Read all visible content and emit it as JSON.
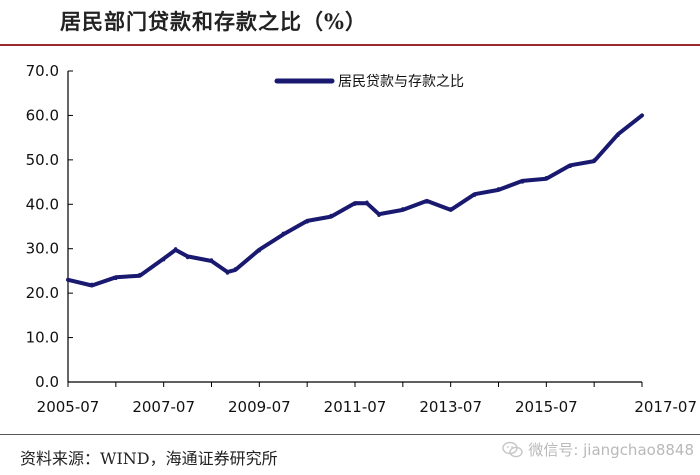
{
  "header": {
    "title": "居民部门贷款和存款之比（%）"
  },
  "footer": {
    "source": "资料来源：WIND，海通证券研究所",
    "watermark": "微信号: jiangchao8848",
    "watermark_icon": "wechat-icon"
  },
  "colors": {
    "series": "#191970",
    "rule": "#9b2b2b"
  },
  "chart_data": {
    "type": "line",
    "title": "居民部门贷款和存款之比（%）",
    "xlabel": "",
    "ylabel": "",
    "ylim": [
      0,
      70
    ],
    "xlim": [
      "2005-07",
      "2017-07"
    ],
    "y_ticks": [
      "0.0",
      "10.0",
      "20.0",
      "30.0",
      "40.0",
      "50.0",
      "60.0",
      "70.0"
    ],
    "x_ticks": [
      "2005-07",
      "2007-07",
      "2009-07",
      "2011-07",
      "2013-07",
      "2015-07",
      "2017-07"
    ],
    "grid": false,
    "legend_position": "top",
    "series": [
      {
        "name": "居民贷款与存款之比",
        "x": [
          "2005-07",
          "2006-01",
          "2006-07",
          "2007-01",
          "2007-07",
          "2007-10",
          "2008-01",
          "2008-07",
          "2008-11",
          "2009-01",
          "2009-07",
          "2010-01",
          "2010-07",
          "2011-01",
          "2011-07",
          "2011-10",
          "2012-01",
          "2012-07",
          "2013-01",
          "2013-07",
          "2014-01",
          "2014-07",
          "2015-01",
          "2015-07",
          "2016-01",
          "2016-07",
          "2017-01",
          "2017-07"
        ],
        "values": [
          23.0,
          22.0,
          23.3,
          24.2,
          27.5,
          30.0,
          28.0,
          27.5,
          24.5,
          25.5,
          29.5,
          33.5,
          36.0,
          37.5,
          40.0,
          40.5,
          37.5,
          39.0,
          40.5,
          39.0,
          42.0,
          43.5,
          45.0,
          46.0,
          48.5,
          50.0,
          55.5,
          60.0
        ]
      }
    ]
  }
}
